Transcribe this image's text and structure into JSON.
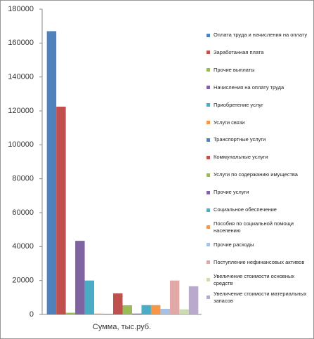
{
  "chart_data": {
    "type": "bar",
    "categories": [
      "Сумма, тыс.руб."
    ],
    "ylim": [
      0,
      180000
    ],
    "yticks": [
      0,
      20000,
      40000,
      60000,
      80000,
      100000,
      120000,
      140000,
      160000,
      180000
    ],
    "series": [
      {
        "name": "Оплата труда и начисления на оплату",
        "color": "#4f81bd",
        "values": [
          167000
        ]
      },
      {
        "name": "Заработанная плата",
        "color": "#c0504d",
        "values": [
          122500
        ]
      },
      {
        "name": "Прочие выплаты",
        "color": "#9bbb59",
        "values": [
          1000
        ]
      },
      {
        "name": "Начисления на оплату труда",
        "color": "#8064a2",
        "values": [
          43400
        ]
      },
      {
        "name": "Приобретение услуг",
        "color": "#4bacc6",
        "values": [
          20000
        ]
      },
      {
        "name": "Услуги связи",
        "color": "#f79646",
        "values": [
          500
        ]
      },
      {
        "name": "Транспортные услуги",
        "color": "#4f81bd",
        "values": [
          300
        ]
      },
      {
        "name": "Коммунальные услуги",
        "color": "#c0504d",
        "values": [
          12400
        ]
      },
      {
        "name": "Услуги по содержанию имущества",
        "color": "#9bbb59",
        "values": [
          5400
        ]
      },
      {
        "name": "Прочие услуги",
        "color": "#8064a2",
        "values": [
          500
        ]
      },
      {
        "name": "Социальное обеспечение",
        "color": "#4bacc6",
        "values": [
          5500
        ]
      },
      {
        "name": "Пособия по социальной помощи населению",
        "color": "#f79646",
        "values": [
          5500
        ]
      },
      {
        "name": "Прочие расходы",
        "color": "#a7c0e3",
        "values": [
          3300
        ]
      },
      {
        "name": "Поступление нефинансовых активов",
        "color": "#e0a9a8",
        "values": [
          20000
        ]
      },
      {
        "name": "Увеличение стоимости основных средств",
        "color": "#cddcb0",
        "values": [
          3000
        ]
      },
      {
        "name": "Увеличение стоимости материальных запасов",
        "color": "#b9aacd",
        "values": [
          16600
        ]
      }
    ]
  }
}
